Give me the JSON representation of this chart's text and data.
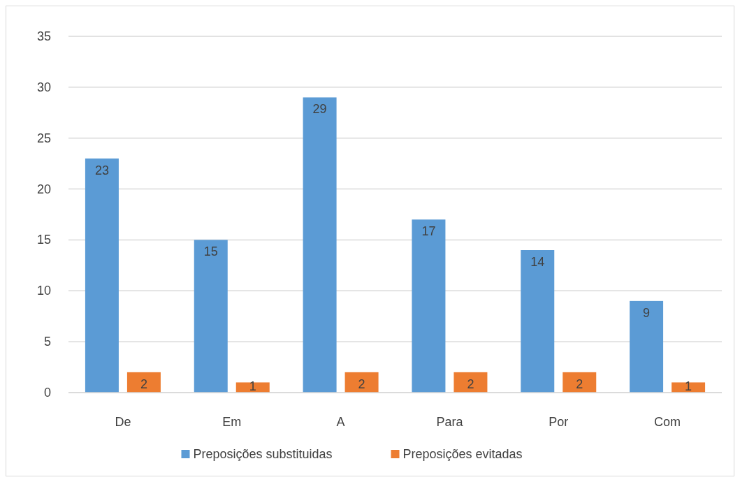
{
  "chart_data": {
    "type": "bar",
    "categories": [
      "De",
      "Em",
      "A",
      "Para",
      "Por",
      "Com"
    ],
    "series": [
      {
        "name": "Preposições substituidas",
        "color": "#5b9bd5",
        "values": [
          23,
          15,
          29,
          17,
          14,
          9
        ]
      },
      {
        "name": "Preposições evitadas",
        "color": "#ed7d31",
        "values": [
          2,
          1,
          2,
          2,
          2,
          1
        ]
      }
    ],
    "ylim": [
      0,
      35
    ],
    "yticks": [
      0,
      5,
      10,
      15,
      20,
      25,
      30,
      35
    ],
    "grid": "y",
    "legend": "bottom",
    "data_labels": true
  }
}
